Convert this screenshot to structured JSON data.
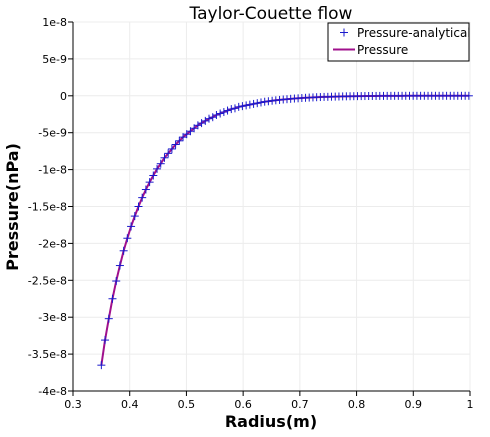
{
  "chart_data": {
    "type": "line",
    "title": "Taylor-Couette flow",
    "xlabel": "Radius(m)",
    "ylabel": "Pressure(nPa)",
    "xlim": [
      0.3,
      1.0
    ],
    "ylim": [
      -4e-08,
      1e-08
    ],
    "x_ticks": [
      {
        "value": 0.3,
        "label": "0.3"
      },
      {
        "value": 0.4,
        "label": "0.4"
      },
      {
        "value": 0.5,
        "label": "0.5"
      },
      {
        "value": 0.6,
        "label": "0.6"
      },
      {
        "value": 0.7,
        "label": "0.7"
      },
      {
        "value": 0.8,
        "label": "0.8"
      },
      {
        "value": 0.9,
        "label": "0.9"
      },
      {
        "value": 1.0,
        "label": "1"
      }
    ],
    "y_ticks": [
      {
        "value": 1e-08,
        "label": "1e-8"
      },
      {
        "value": 5e-09,
        "label": "5e-9"
      },
      {
        "value": 0,
        "label": "0"
      },
      {
        "value": -5e-09,
        "label": "-5e-9"
      },
      {
        "value": -1e-08,
        "label": "-1e-8"
      },
      {
        "value": -1.5e-08,
        "label": "-1.5e-8"
      },
      {
        "value": -2e-08,
        "label": "-2e-8"
      },
      {
        "value": -2.5e-08,
        "label": "-2.5e-8"
      },
      {
        "value": -3e-08,
        "label": "-3e-8"
      },
      {
        "value": -3.5e-08,
        "label": "-3.5e-8"
      },
      {
        "value": -4e-08,
        "label": "-4e-8"
      }
    ],
    "grid": true,
    "legend_position": "top-right",
    "series": [
      {
        "name": "Pressure-analytical",
        "kind": "markers",
        "marker": "plus",
        "color": "#1a1acc",
        "x": [
          0.35,
          0.3565,
          0.3631,
          0.3696,
          0.3762,
          0.3827,
          0.3893,
          0.3958,
          0.4024,
          0.4089,
          0.4155,
          0.422,
          0.4285,
          0.4351,
          0.4416,
          0.4482,
          0.4547,
          0.4613,
          0.4678,
          0.4744,
          0.4809,
          0.4875,
          0.494,
          0.5005,
          0.5071,
          0.5136,
          0.5202,
          0.5267,
          0.5333,
          0.5398,
          0.5464,
          0.5529,
          0.5595,
          0.566,
          0.5725,
          0.5791,
          0.5856,
          0.5922,
          0.5987,
          0.6053,
          0.6118,
          0.6184,
          0.6249,
          0.6315,
          0.638,
          0.6445,
          0.6511,
          0.6576,
          0.6642,
          0.6707,
          0.6773,
          0.6838,
          0.6904,
          0.6969,
          0.7035,
          0.71,
          0.7165,
          0.7231,
          0.7296,
          0.7362,
          0.7427,
          0.7493,
          0.7558,
          0.7624,
          0.7689,
          0.7755,
          0.782,
          0.7885,
          0.7951,
          0.8016,
          0.8082,
          0.8147,
          0.8213,
          0.8278,
          0.8344,
          0.8409,
          0.8475,
          0.854,
          0.8605,
          0.8671,
          0.8736,
          0.8802,
          0.8867,
          0.8933,
          0.8998,
          0.9064,
          0.9129,
          0.9195,
          0.926,
          0.9325,
          0.9391,
          0.9456,
          0.9522,
          0.9587,
          0.9653,
          0.9718,
          0.9784,
          0.9849,
          0.9915,
          0.998
        ],
        "y": [
          -3.65e-08,
          -3.31e-08,
          -3.02e-08,
          -2.75e-08,
          -2.51e-08,
          -2.3e-08,
          -2.1e-08,
          -1.93e-08,
          -1.77e-08,
          -1.63e-08,
          -1.5e-08,
          -1.38e-08,
          -1.27e-08,
          -1.17e-08,
          -1.08e-08,
          -9.9e-09,
          -9.2e-09,
          -8.4e-09,
          -7.8e-09,
          -7.2e-09,
          -6.6e-09,
          -6.1e-09,
          -5.6e-09,
          -5.2e-09,
          -4.8e-09,
          -4.4e-09,
          -4e-09,
          -3.7e-09,
          -3.4e-09,
          -3.1e-09,
          -2.9e-09,
          -2.6e-09,
          -2.4e-09,
          -2.2e-09,
          -2e-09,
          -1.8e-09,
          -1.7e-09,
          -1.5e-09,
          -1.4e-09,
          -1.3e-09,
          -1.2e-09,
          -1.1e-09,
          -1e-09,
          -9e-10,
          -8e-10,
          -7.4e-10,
          -6.7e-10,
          -6.1e-10,
          -5.6e-10,
          -5e-10,
          -4.6e-10,
          -4.1e-10,
          -3.7e-10,
          -3.4e-10,
          -3e-10,
          -2.7e-10,
          -2.4e-10,
          -2.2e-10,
          -1.9e-10,
          -1.7e-10,
          -1.5e-10,
          -1.4e-10,
          -1.2e-10,
          -1.1e-10,
          -9.4e-11,
          -8.2e-11,
          -7.2e-11,
          -6.2e-11,
          -5.4e-11,
          -4.6e-11,
          -3.9e-11,
          -3.3e-11,
          -2.8e-11,
          -2.3e-11,
          -1.9e-11,
          -1.5e-11,
          -1.2e-11,
          -9.6e-12,
          -7.4e-12,
          -5.6e-12,
          -4.1e-12,
          -2.9e-12,
          -2e-12,
          -1.3e-12,
          -8e-13,
          -4.4e-13,
          -2.1e-13,
          -8e-14,
          -2.2e-14,
          -3e-15,
          0,
          0,
          0,
          0,
          0,
          0,
          0,
          0,
          0,
          0
        ]
      },
      {
        "name": "Pressure",
        "kind": "line",
        "color": "#a0108c",
        "x": [
          0.35,
          0.3565,
          0.3631,
          0.3696,
          0.3762,
          0.3827,
          0.3893,
          0.3958,
          0.4024,
          0.4089,
          0.4155,
          0.422,
          0.4285,
          0.4351,
          0.4416,
          0.4482,
          0.4547,
          0.4613,
          0.4678,
          0.4744,
          0.4809,
          0.4875,
          0.494,
          0.5005,
          0.5071,
          0.5136,
          0.5202,
          0.5267,
          0.5333,
          0.5398,
          0.5464,
          0.5529,
          0.5595,
          0.566,
          0.5725,
          0.5791,
          0.5856,
          0.5922,
          0.5987,
          0.6053,
          0.6118,
          0.6184,
          0.6249,
          0.6315,
          0.638,
          0.6445,
          0.6511,
          0.6576,
          0.6642,
          0.6707,
          0.6773,
          0.6838,
          0.6904,
          0.6969,
          0.7035,
          0.71,
          0.7165,
          0.7231,
          0.7296,
          0.7362,
          0.7427,
          0.7493,
          0.7558,
          0.7624,
          0.7689,
          0.7755,
          0.782,
          0.7885,
          0.7951,
          0.8016,
          0.8082,
          0.8147,
          0.8213,
          0.8278,
          0.8344,
          0.8409,
          0.8475,
          0.854,
          0.8605,
          0.8671,
          0.8736,
          0.8802,
          0.8867,
          0.8933,
          0.8998,
          0.9064,
          0.9129,
          0.9195,
          0.926,
          0.9325,
          0.9391,
          0.9456,
          0.9522,
          0.9587,
          0.9653,
          0.9718,
          0.9784,
          0.9849,
          0.9915,
          0.998
        ],
        "y": [
          -3.65e-08,
          -3.31e-08,
          -3.02e-08,
          -2.75e-08,
          -2.51e-08,
          -2.3e-08,
          -2.1e-08,
          -1.93e-08,
          -1.77e-08,
          -1.63e-08,
          -1.5e-08,
          -1.38e-08,
          -1.27e-08,
          -1.17e-08,
          -1.08e-08,
          -9.9e-09,
          -9.2e-09,
          -8.4e-09,
          -7.8e-09,
          -7.2e-09,
          -6.6e-09,
          -6.1e-09,
          -5.6e-09,
          -5.2e-09,
          -4.8e-09,
          -4.4e-09,
          -4e-09,
          -3.7e-09,
          -3.4e-09,
          -3.1e-09,
          -2.9e-09,
          -2.6e-09,
          -2.4e-09,
          -2.2e-09,
          -2e-09,
          -1.8e-09,
          -1.7e-09,
          -1.5e-09,
          -1.4e-09,
          -1.3e-09,
          -1.2e-09,
          -1.1e-09,
          -1e-09,
          -9e-10,
          -8e-10,
          -7.4e-10,
          -6.7e-10,
          -6.1e-10,
          -5.6e-10,
          -5e-10,
          -4.6e-10,
          -4.1e-10,
          -3.7e-10,
          -3.4e-10,
          -3e-10,
          -2.7e-10,
          -2.4e-10,
          -2.2e-10,
          -1.9e-10,
          -1.7e-10,
          -1.5e-10,
          -1.4e-10,
          -1.2e-10,
          -1.1e-10,
          -9.4e-11,
          -8.2e-11,
          -7.2e-11,
          -6.2e-11,
          -5.4e-11,
          -4.6e-11,
          -3.9e-11,
          -3.3e-11,
          -2.8e-11,
          -2.3e-11,
          -1.9e-11,
          -1.5e-11,
          -1.2e-11,
          -9.6e-12,
          -7.4e-12,
          -5.6e-12,
          -4.1e-12,
          -2.9e-12,
          -2e-12,
          -1.3e-12,
          -8e-13,
          -4.4e-13,
          -2.1e-13,
          -8e-14,
          -2.2e-14,
          -3e-15,
          0,
          0,
          0,
          0,
          0,
          0,
          0,
          0,
          0,
          0
        ]
      }
    ]
  }
}
